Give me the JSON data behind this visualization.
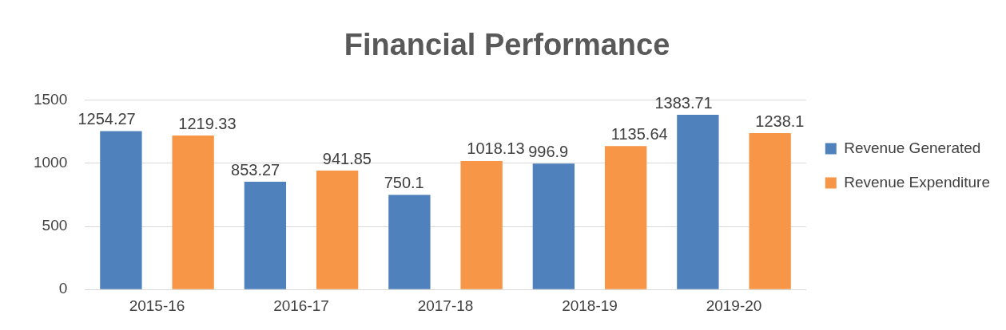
{
  "chart_data": {
    "type": "bar",
    "title": "Financial Performance",
    "categories": [
      "2015-16",
      "2016-17",
      "2017-18",
      "2018-19",
      "2019-20"
    ],
    "series": [
      {
        "name": "Revenue Generated",
        "color": "#4f81bd",
        "values": [
          1254.27,
          853.27,
          750.1,
          996.9,
          1383.71
        ]
      },
      {
        "name": "Revenue Expenditure",
        "color": "#f79646",
        "values": [
          1219.33,
          941.85,
          1018.13,
          1135.64,
          1238.1
        ]
      }
    ],
    "ylim": [
      0,
      1500
    ],
    "yticks": [
      0,
      500,
      1000,
      1500
    ],
    "grid": "y",
    "legend": "right",
    "data_labels": true
  }
}
